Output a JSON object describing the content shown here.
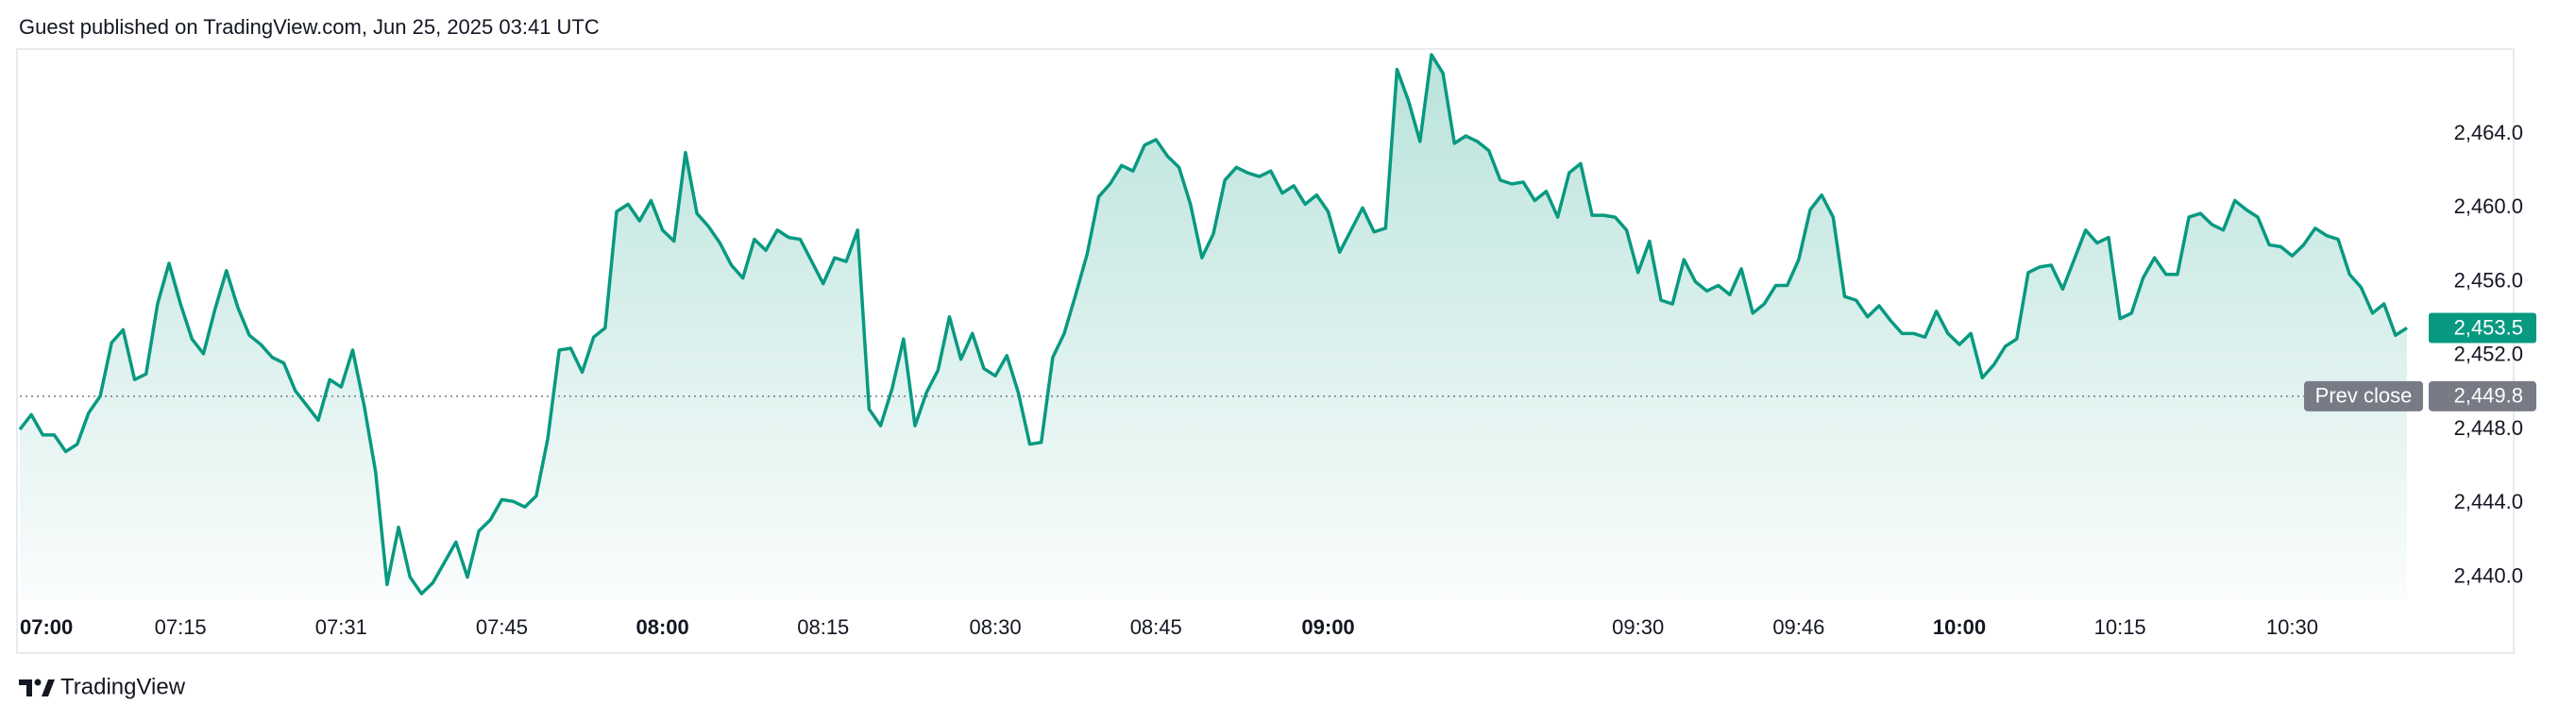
{
  "chart_data": {
    "type": "area",
    "title": "Guest published on TradingView.com, Jun 25, 2025 03:41 UTC",
    "categories": [
      "07:00",
      null,
      null,
      null,
      null,
      null,
      null,
      null,
      null,
      null,
      null,
      null,
      null,
      null,
      "07:15",
      null,
      null,
      null,
      null,
      null,
      null,
      null,
      null,
      null,
      null,
      null,
      null,
      null,
      "07:31",
      null,
      null,
      null,
      null,
      null,
      null,
      null,
      null,
      null,
      null,
      null,
      null,
      null,
      "07:45",
      null,
      null,
      null,
      null,
      null,
      null,
      null,
      null,
      null,
      null,
      null,
      null,
      null,
      "08:00",
      null,
      null,
      null,
      null,
      null,
      null,
      null,
      null,
      null,
      null,
      null,
      null,
      null,
      "08:15",
      null,
      null,
      null,
      null,
      null,
      null,
      null,
      null,
      null,
      null,
      null,
      null,
      null,
      null,
      "08:30",
      null,
      null,
      null,
      null,
      null,
      null,
      null,
      null,
      null,
      null,
      null,
      null,
      null,
      "08:45",
      null,
      null,
      null,
      null,
      null,
      null,
      null,
      null,
      null,
      null,
      null,
      null,
      null,
      null,
      "09:00",
      null,
      null,
      null,
      null,
      null,
      null,
      null,
      null,
      null,
      null,
      null,
      null,
      null,
      null,
      null,
      null,
      null,
      null,
      null,
      null,
      null,
      null,
      null,
      null,
      null,
      null,
      "09:30",
      null,
      null,
      null,
      null,
      null,
      null,
      null,
      null,
      null,
      null,
      null,
      null,
      null,
      "09:46",
      null,
      null,
      null,
      null,
      null,
      null,
      null,
      null,
      null,
      null,
      null,
      null,
      null,
      "10:00",
      null,
      null,
      null,
      null,
      null,
      null,
      null,
      null,
      null,
      null,
      null,
      null,
      null,
      "10:15",
      null,
      null,
      null,
      null,
      null,
      null,
      null,
      null,
      null,
      null,
      null,
      null,
      null,
      null,
      "10:30",
      null,
      null,
      null,
      null,
      null,
      null,
      null,
      null,
      null,
      null
    ],
    "series": [
      {
        "color": "#089981",
        "values": [
          2448.0,
          2448.8,
          2447.7,
          2447.7,
          2446.8,
          2447.2,
          2448.9,
          2449.8,
          2452.7,
          2453.4,
          2450.7,
          2451.0,
          2454.8,
          2457.0,
          2454.8,
          2452.9,
          2452.1,
          2454.5,
          2456.6,
          2454.6,
          2453.1,
          2452.6,
          2451.9,
          2451.6,
          2450.1,
          2449.3,
          2448.5,
          2450.7,
          2450.3,
          2452.3,
          2449.3,
          2445.7,
          2439.6,
          2442.7,
          2440.0,
          2439.1,
          2439.7,
          2440.8,
          2441.9,
          2440.0,
          2442.5,
          2443.1,
          2444.2,
          2444.1,
          2443.8,
          2444.4,
          2447.5,
          2452.3,
          2452.4,
          2451.1,
          2453.0,
          2453.5,
          2459.8,
          2460.2,
          2459.3,
          2460.4,
          2458.8,
          2458.2,
          2463.0,
          2459.7,
          2459.0,
          2458.1,
          2456.9,
          2456.2,
          2458.3,
          2457.7,
          2458.8,
          2458.4,
          2458.3,
          2457.1,
          2455.9,
          2457.3,
          2457.1,
          2458.8,
          2449.1,
          2448.2,
          2450.2,
          2452.9,
          2448.2,
          2450.0,
          2451.2,
          2454.1,
          2451.8,
          2453.2,
          2451.3,
          2450.9,
          2452.0,
          2450.0,
          2447.2,
          2447.3,
          2451.9,
          2453.2,
          2455.3,
          2457.5,
          2460.6,
          2461.3,
          2462.3,
          2462.0,
          2463.4,
          2463.7,
          2462.8,
          2462.2,
          2460.2,
          2457.3,
          2458.6,
          2461.5,
          2462.2,
          2461.9,
          2461.7,
          2462.0,
          2460.8,
          2461.2,
          2460.2,
          2460.7,
          2459.8,
          2457.6,
          2458.8,
          2460.0,
          2458.7,
          2458.9,
          2467.5,
          2465.8,
          2463.6,
          2468.3,
          2467.3,
          2463.5,
          2463.9,
          2463.6,
          2463.1,
          2461.5,
          2461.3,
          2461.4,
          2460.4,
          2460.9,
          2459.5,
          2461.9,
          2462.4,
          2459.6,
          2459.6,
          2459.5,
          2458.8,
          2456.5,
          2458.2,
          2455.0,
          2454.8,
          2457.2,
          2456.0,
          2455.5,
          2455.8,
          2455.3,
          2456.7,
          2454.3,
          2454.8,
          2455.8,
          2455.8,
          2457.2,
          2459.9,
          2460.7,
          2459.5,
          2455.2,
          2455.0,
          2454.1,
          2454.7,
          2453.9,
          2453.2,
          2453.2,
          2453.0,
          2454.4,
          2453.2,
          2452.6,
          2453.2,
          2450.8,
          2451.5,
          2452.5,
          2452.9,
          2456.5,
          2456.8,
          2456.9,
          2455.6,
          2457.2,
          2458.8,
          2458.1,
          2458.4,
          2454.0,
          2454.3,
          2456.2,
          2457.3,
          2456.4,
          2456.4,
          2459.5,
          2459.7,
          2459.1,
          2458.8,
          2460.4,
          2459.9,
          2459.5,
          2458.0,
          2457.9,
          2457.4,
          2458.0,
          2458.9,
          2458.5,
          2458.3,
          2456.4,
          2455.7,
          2454.3,
          2454.8,
          2453.1,
          2453.5
        ]
      }
    ],
    "ylim": [
      2438.8,
      2468.4
    ],
    "yticks": [
      {
        "value": 2440,
        "label": "2,440.0"
      },
      {
        "value": 2444,
        "label": "2,444.0"
      },
      {
        "value": 2448,
        "label": "2,448.0"
      },
      {
        "value": 2452,
        "label": "2,452.0"
      },
      {
        "value": 2456,
        "label": "2,456.0"
      },
      {
        "value": 2460,
        "label": "2,460.0"
      },
      {
        "value": 2464,
        "label": "2,464.0"
      }
    ],
    "grid": false,
    "last_price": {
      "value": 2453.5,
      "label": "2,453.5"
    },
    "prev_close": {
      "name": "Prev close",
      "value": 2449.8,
      "label": "2,449.8",
      "color": "#787b86"
    }
  },
  "branding": "TradingView"
}
